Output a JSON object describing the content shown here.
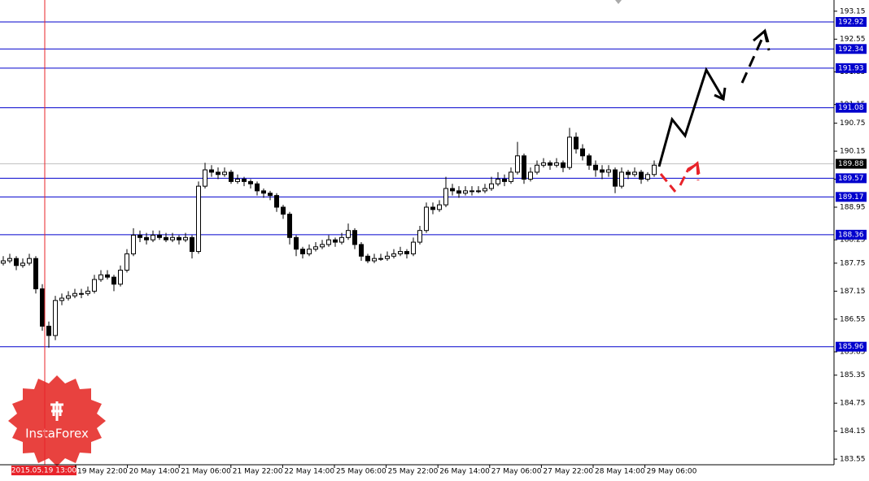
{
  "chart_data": {
    "type": "candlestick",
    "ylim": [
      183.43,
      193.39
    ],
    "yticks": [
      193.15,
      192.55,
      191.85,
      191.15,
      190.75,
      190.15,
      189.55,
      188.95,
      188.25,
      187.75,
      187.15,
      186.55,
      185.85,
      185.35,
      184.75,
      184.15,
      183.55
    ],
    "levels": [
      192.92,
      192.34,
      191.93,
      191.08,
      189.57,
      189.17,
      188.36,
      185.96
    ],
    "last_price": 189.88,
    "crosshair_label": "2015.05.19 13:00",
    "xtick_labels": [
      "19 May 22:00",
      "20 May 14:00",
      "21 May 06:00",
      "21 May 22:00",
      "22 May 14:00",
      "25 May 06:00",
      "25 May 22:00",
      "26 May 14:00",
      "27 May 06:00",
      "27 May 22:00",
      "28 May 14:00",
      "29 May 06:00"
    ],
    "watermark": "InstaForex",
    "ohlc": [
      [
        187.75,
        187.9,
        187.7,
        187.8
      ],
      [
        187.8,
        187.95,
        187.75,
        187.85
      ],
      [
        187.85,
        187.9,
        187.6,
        187.7
      ],
      [
        187.7,
        187.85,
        187.65,
        187.75
      ],
      [
        187.75,
        187.95,
        187.7,
        187.85
      ],
      [
        187.85,
        187.9,
        187.1,
        187.2
      ],
      [
        187.2,
        187.3,
        186.3,
        186.4
      ],
      [
        186.4,
        186.5,
        185.94,
        186.2
      ],
      [
        186.2,
        187.05,
        186.1,
        186.95
      ],
      [
        186.95,
        187.1,
        186.85,
        187.0
      ],
      [
        187.0,
        187.15,
        186.95,
        187.05
      ],
      [
        187.05,
        187.2,
        187.0,
        187.1
      ],
      [
        187.1,
        187.2,
        187.0,
        187.1
      ],
      [
        187.1,
        187.25,
        187.05,
        187.15
      ],
      [
        187.15,
        187.5,
        187.1,
        187.4
      ],
      [
        187.4,
        187.6,
        187.35,
        187.5
      ],
      [
        187.5,
        187.6,
        187.4,
        187.45
      ],
      [
        187.45,
        187.5,
        187.15,
        187.3
      ],
      [
        187.3,
        187.7,
        187.25,
        187.6
      ],
      [
        187.6,
        188.05,
        187.55,
        187.95
      ],
      [
        187.95,
        188.5,
        187.9,
        188.35
      ],
      [
        188.35,
        188.45,
        188.2,
        188.3
      ],
      [
        188.3,
        188.4,
        188.15,
        188.25
      ],
      [
        188.25,
        188.45,
        188.2,
        188.35
      ],
      [
        188.35,
        188.45,
        188.25,
        188.3
      ],
      [
        188.3,
        188.4,
        188.2,
        188.25
      ],
      [
        188.25,
        188.4,
        188.2,
        188.3
      ],
      [
        188.3,
        188.35,
        188.15,
        188.25
      ],
      [
        188.25,
        188.4,
        188.2,
        188.3
      ],
      [
        188.3,
        188.35,
        187.85,
        188.0
      ],
      [
        188.0,
        189.5,
        187.95,
        189.4
      ],
      [
        189.4,
        189.9,
        189.35,
        189.75
      ],
      [
        189.75,
        189.85,
        189.6,
        189.7
      ],
      [
        189.7,
        189.8,
        189.55,
        189.65
      ],
      [
        189.65,
        189.8,
        189.6,
        189.7
      ],
      [
        189.7,
        189.75,
        189.45,
        189.5
      ],
      [
        189.5,
        189.65,
        189.45,
        189.55
      ],
      [
        189.55,
        189.6,
        189.4,
        189.5
      ],
      [
        189.5,
        189.55,
        189.35,
        189.45
      ],
      [
        189.45,
        189.5,
        189.2,
        189.3
      ],
      [
        189.3,
        189.35,
        189.15,
        189.25
      ],
      [
        189.25,
        189.3,
        189.1,
        189.2
      ],
      [
        189.2,
        189.25,
        188.85,
        188.95
      ],
      [
        188.95,
        189.0,
        188.7,
        188.8
      ],
      [
        188.8,
        188.85,
        188.15,
        188.3
      ],
      [
        188.3,
        188.35,
        187.9,
        188.05
      ],
      [
        188.05,
        188.1,
        187.85,
        187.95
      ],
      [
        187.95,
        188.15,
        187.9,
        188.05
      ],
      [
        188.05,
        188.2,
        188.0,
        188.1
      ],
      [
        188.1,
        188.25,
        188.05,
        188.15
      ],
      [
        188.15,
        188.35,
        188.1,
        188.25
      ],
      [
        188.25,
        188.3,
        188.1,
        188.2
      ],
      [
        188.2,
        188.4,
        188.15,
        188.3
      ],
      [
        188.3,
        188.6,
        188.25,
        188.45
      ],
      [
        188.45,
        188.5,
        188.05,
        188.15
      ],
      [
        188.15,
        188.2,
        187.8,
        187.9
      ],
      [
        187.9,
        187.95,
        187.75,
        187.8
      ],
      [
        187.8,
        187.95,
        187.75,
        187.85
      ],
      [
        187.85,
        187.95,
        187.8,
        187.85
      ],
      [
        187.85,
        188.0,
        187.8,
        187.9
      ],
      [
        187.9,
        188.05,
        187.85,
        187.95
      ],
      [
        187.95,
        188.1,
        187.9,
        188.0
      ],
      [
        188.0,
        188.05,
        187.85,
        187.95
      ],
      [
        187.95,
        188.3,
        187.9,
        188.2
      ],
      [
        188.2,
        188.55,
        188.15,
        188.45
      ],
      [
        188.45,
        189.05,
        188.4,
        188.95
      ],
      [
        188.95,
        189.05,
        188.8,
        188.9
      ],
      [
        188.9,
        189.1,
        188.85,
        189.0
      ],
      [
        189.0,
        189.6,
        188.95,
        189.35
      ],
      [
        189.35,
        189.45,
        189.2,
        189.3
      ],
      [
        189.3,
        189.4,
        189.15,
        189.25
      ],
      [
        189.25,
        189.4,
        189.2,
        189.3
      ],
      [
        189.3,
        189.4,
        189.2,
        189.3
      ],
      [
        189.3,
        189.4,
        189.25,
        189.3
      ],
      [
        189.3,
        189.45,
        189.25,
        189.35
      ],
      [
        189.35,
        189.6,
        189.3,
        189.45
      ],
      [
        189.45,
        189.7,
        189.4,
        189.55
      ],
      [
        189.55,
        189.65,
        189.4,
        189.5
      ],
      [
        189.5,
        189.8,
        189.45,
        189.7
      ],
      [
        189.7,
        190.35,
        189.65,
        190.05
      ],
      [
        190.05,
        190.1,
        189.45,
        189.55
      ],
      [
        189.55,
        189.8,
        189.5,
        189.7
      ],
      [
        189.7,
        189.95,
        189.65,
        189.85
      ],
      [
        189.85,
        190.0,
        189.8,
        189.9
      ],
      [
        189.9,
        189.95,
        189.75,
        189.85
      ],
      [
        189.85,
        190.0,
        189.8,
        189.9
      ],
      [
        189.9,
        189.95,
        189.7,
        189.8
      ],
      [
        189.8,
        190.65,
        189.75,
        190.45
      ],
      [
        190.45,
        190.55,
        190.1,
        190.2
      ],
      [
        190.2,
        190.3,
        189.95,
        190.05
      ],
      [
        190.05,
        190.1,
        189.75,
        189.85
      ],
      [
        189.85,
        189.95,
        189.6,
        189.75
      ],
      [
        189.75,
        189.85,
        189.55,
        189.7
      ],
      [
        189.7,
        189.85,
        189.6,
        189.75
      ],
      [
        189.75,
        189.8,
        189.25,
        189.4
      ],
      [
        189.4,
        189.8,
        189.35,
        189.7
      ],
      [
        189.7,
        189.75,
        189.55,
        189.65
      ],
      [
        189.65,
        189.8,
        189.6,
        189.7
      ],
      [
        189.7,
        189.75,
        189.45,
        189.55
      ],
      [
        189.55,
        189.7,
        189.5,
        189.65
      ],
      [
        189.65,
        189.95,
        189.6,
        189.85
      ]
    ]
  }
}
